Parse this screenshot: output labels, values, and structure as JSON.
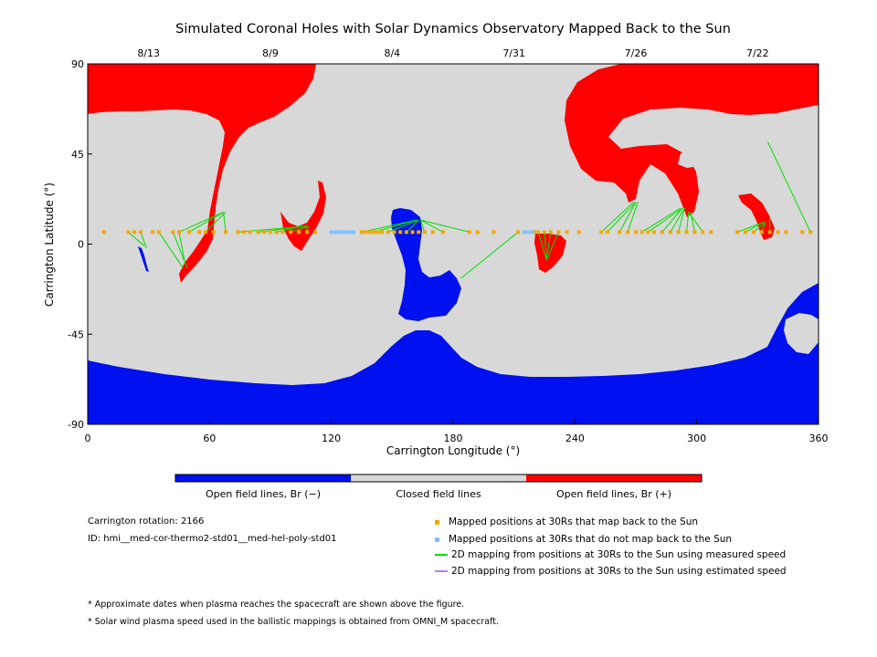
{
  "chart_data": {
    "type": "scatter",
    "title": "Simulated Coronal Holes with Solar Dynamics Observatory Mapped Back to the Sun",
    "xlabel": "Carrington Longitude (°)",
    "ylabel": "Carrington Latitude (°)",
    "xlim": [
      0,
      360
    ],
    "ylim": [
      -90,
      90
    ],
    "x_ticks": [
      0,
      60,
      120,
      180,
      240,
      300,
      360
    ],
    "y_ticks": [
      90,
      45,
      0,
      -45,
      -90
    ],
    "top_dates": [
      {
        "label": "8/13",
        "lon": 30
      },
      {
        "label": "8/9",
        "lon": 90
      },
      {
        "label": "8/4",
        "lon": 150
      },
      {
        "label": "7/31",
        "lon": 210
      },
      {
        "label": "7/26",
        "lon": 270
      },
      {
        "label": "7/22",
        "lon": 330
      }
    ],
    "colorbar": [
      {
        "label": "Open field lines, Br (−)",
        "color": "#0010ee"
      },
      {
        "label": "Closed field lines",
        "color": "#d8d8d8"
      },
      {
        "label": "Open field lines, Br (+)",
        "color": "#ff0000"
      }
    ],
    "regions": {
      "closed_color": "#d8d8d8",
      "positive_color": "#ff0000",
      "negative_color": "#0010ee"
    },
    "mapped_latitude": 6,
    "mapped_points": {
      "color": "#f0a800",
      "lons": [
        8,
        20,
        23,
        26,
        32,
        35,
        42,
        45,
        50,
        55,
        58,
        62,
        68,
        74,
        77,
        80,
        84,
        87,
        90,
        93,
        96,
        100,
        104,
        108,
        112,
        135,
        137,
        139,
        141,
        143,
        145,
        148,
        151,
        154,
        157,
        160,
        163,
        166,
        170,
        175,
        188,
        192,
        200,
        212,
        220,
        222,
        225,
        228,
        232,
        236,
        242,
        253,
        256,
        262,
        266,
        270,
        273,
        276,
        279,
        283,
        287,
        291,
        295,
        299,
        303,
        307,
        320,
        324,
        328,
        332,
        336,
        340,
        344,
        352,
        356
      ]
    },
    "unmapped_points": {
      "color": "#80c0ff",
      "lons": [
        120,
        122,
        124,
        126,
        128,
        130,
        131,
        215,
        217,
        219
      ]
    },
    "measured_speed_lines": {
      "color": "#00dd00",
      "segments": [
        [
          20,
          6,
          28,
          -1
        ],
        [
          26,
          6,
          29,
          -2
        ],
        [
          35,
          6,
          47,
          -12
        ],
        [
          42,
          6,
          49,
          -12
        ],
        [
          45,
          6,
          48,
          -10
        ],
        [
          45,
          6,
          67,
          16
        ],
        [
          50,
          6,
          67,
          16
        ],
        [
          58,
          6,
          68,
          16
        ],
        [
          68,
          6,
          67,
          15
        ],
        [
          74,
          6,
          108,
          9
        ],
        [
          84,
          6,
          108,
          9
        ],
        [
          93,
          6,
          106,
          9
        ],
        [
          100,
          6,
          109,
          9
        ],
        [
          108,
          6,
          108,
          9
        ],
        [
          135,
          6,
          162,
          12
        ],
        [
          141,
          6,
          162,
          12
        ],
        [
          148,
          6,
          163,
          12
        ],
        [
          157,
          6,
          163,
          12
        ],
        [
          166,
          6,
          164,
          12
        ],
        [
          175,
          6,
          164,
          12
        ],
        [
          188,
          6,
          164,
          12
        ],
        [
          184,
          -17,
          212,
          6
        ],
        [
          222,
          6,
          226,
          -8
        ],
        [
          225,
          6,
          226,
          -8
        ],
        [
          228,
          6,
          226,
          -8
        ],
        [
          232,
          6,
          226,
          -8
        ],
        [
          253,
          6,
          269,
          21
        ],
        [
          256,
          6,
          270,
          21
        ],
        [
          262,
          6,
          270,
          21
        ],
        [
          266,
          6,
          271,
          21
        ],
        [
          273,
          6,
          292,
          18
        ],
        [
          276,
          6,
          293,
          18
        ],
        [
          283,
          6,
          293,
          18
        ],
        [
          287,
          6,
          294,
          18
        ],
        [
          291,
          6,
          294,
          18
        ],
        [
          295,
          6,
          296,
          16
        ],
        [
          299,
          6,
          297,
          16
        ],
        [
          303,
          6,
          296,
          16
        ],
        [
          320,
          6,
          333,
          11
        ],
        [
          324,
          6,
          333,
          11
        ],
        [
          328,
          6,
          334,
          11
        ],
        [
          332,
          6,
          334,
          11
        ],
        [
          336,
          6,
          336,
          13
        ],
        [
          356,
          6,
          335,
          51
        ]
      ]
    },
    "estimated_speed_lines": {
      "color": "#b080f0",
      "segments": []
    },
    "legend": [
      {
        "label": "Mapped positions at 30Rs that map back to the Sun",
        "kind": "square",
        "color": "#f0a800"
      },
      {
        "label": "Mapped positions at 30Rs that do not map back to the Sun",
        "kind": "square",
        "color": "#80c0ff"
      },
      {
        "label": "2D mapping from positions at 30Rs to the Sun using measured speed",
        "kind": "line",
        "color": "#00dd00"
      },
      {
        "label": "2D mapping from positions at 30Rs to the Sun using estimated speed",
        "kind": "line",
        "color": "#b080f0"
      }
    ]
  },
  "info": {
    "rotation": "Carrington rotation: 2166",
    "id": "ID: hmi__med-cor-thermo2-std01__med-hel-poly-std01"
  },
  "notes": [
    "* Approximate dates when plasma reaches the spacecraft are shown above the figure.",
    "* Solar wind plasma speed used in the ballistic mappings is obtained from OMNI_M spacecraft."
  ]
}
